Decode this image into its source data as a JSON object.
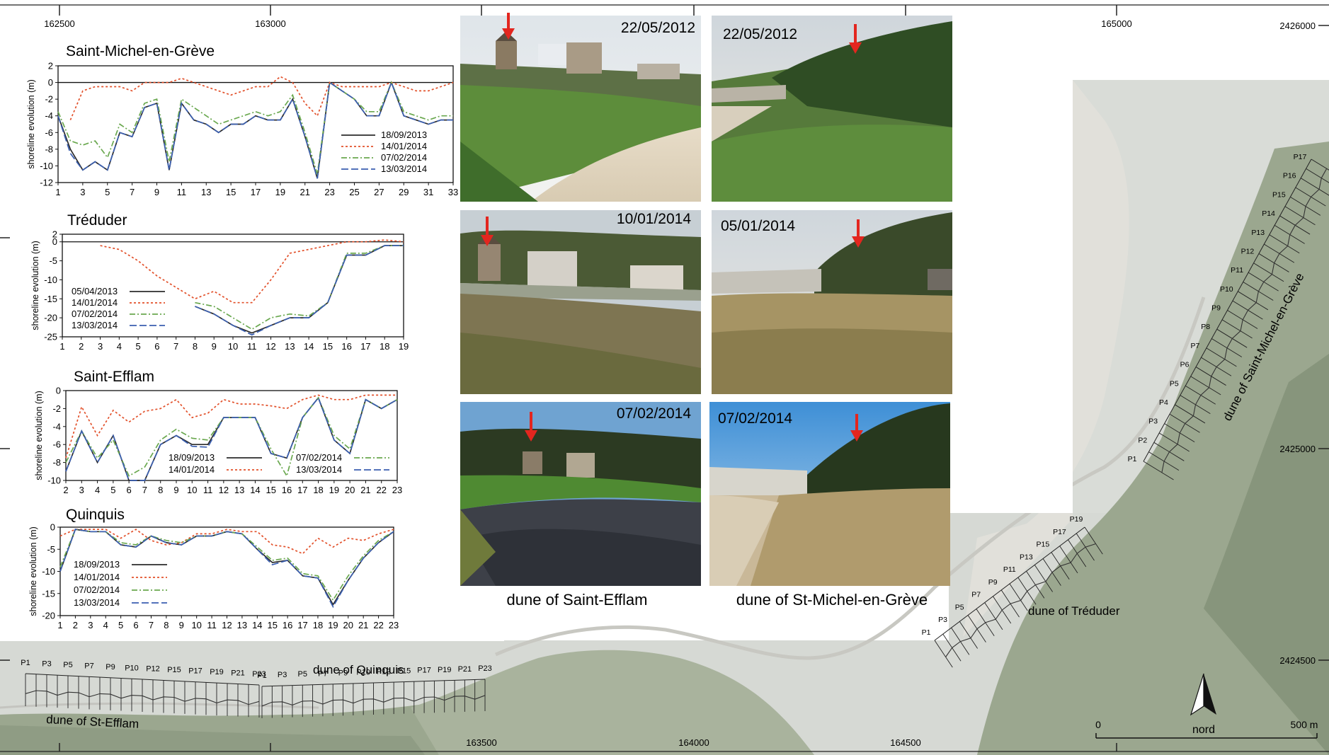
{
  "map": {
    "top_ticks": [
      "162500",
      "163000",
      "165000"
    ],
    "bottom_ticks": [
      "163500",
      "164000",
      "164500"
    ],
    "right_ticks": [
      "2426000",
      "2425000",
      "2424500"
    ],
    "dune_labels": {
      "st_efflam": "dune of St-Efflam",
      "quinquis": "dune of Quinquis",
      "treduder": "dune of Tréduder",
      "st_michel": "dune of Saint-Michel-en-Grève"
    },
    "north_label": "nord",
    "scale_start": "0",
    "scale_end": "500 m",
    "profile_labels": {
      "st_efflam": [
        "P1",
        "P3",
        "P5",
        "P7",
        "P9",
        "P10",
        "P12",
        "P15",
        "P17",
        "P19",
        "P21",
        "P23"
      ],
      "quinquis": [
        "P1",
        "P3",
        "P5",
        "P7",
        "P9",
        "P10",
        "P12",
        "P15",
        "P17",
        "P19",
        "P21",
        "P23"
      ],
      "treduder": [
        "P1",
        "P3",
        "P5",
        "P7",
        "P9",
        "P11",
        "P13",
        "P15",
        "P17",
        "P19"
      ],
      "st_michel": [
        "P1",
        "P2",
        "P3",
        "P4",
        "P5",
        "P6",
        "P7",
        "P8",
        "P9",
        "P10",
        "P11",
        "P12",
        "P13",
        "P14",
        "P15",
        "P16",
        "P17"
      ]
    },
    "colors": {
      "water": "#d7dad6",
      "land": "#9aa88f",
      "land_dark": "#7f8f76",
      "sand": "#e3e1da",
      "road": "#c9c9c4"
    }
  },
  "photos": {
    "dates": {
      "efflam_1": "22/05/2012",
      "efflam_2": "10/01/2014",
      "efflam_3": "07/02/2014",
      "michel_1": "22/05/2012",
      "michel_2": "05/01/2014",
      "michel_3": "07/02/2014"
    },
    "captions": {
      "efflam": "dune of Saint-Efflam",
      "michel": "dune of St-Michel-en-Grève"
    },
    "arrow_color": "#e3261f"
  },
  "chart_data": [
    {
      "type": "line",
      "title": "Saint-Michel-en-Grève",
      "ylabel": "shoreline evolution (m)",
      "xlabel": "",
      "x": [
        1,
        2,
        3,
        4,
        5,
        6,
        7,
        8,
        9,
        10,
        11,
        12,
        13,
        14,
        15,
        16,
        17,
        18,
        19,
        20,
        21,
        22,
        23,
        24,
        25,
        26,
        27,
        28,
        29,
        30,
        31,
        32,
        33
      ],
      "xticks": [
        1,
        3,
        5,
        7,
        9,
        11,
        13,
        15,
        17,
        19,
        21,
        23,
        25,
        27,
        29,
        31,
        33
      ],
      "ylim": [
        -12,
        2
      ],
      "yticks": [
        2,
        0,
        -2,
        -4,
        -6,
        -8,
        -10,
        -12
      ],
      "legend_position": "bottom-right",
      "series": [
        {
          "name": "18/09/2013",
          "color": "#2b2b2b",
          "dash": "none",
          "values": [
            -4,
            -8,
            -10.5,
            -9.5,
            -10.5,
            -6,
            -6.5,
            -3,
            -2.5,
            -10.5,
            -2.5,
            -4.5,
            -5,
            -6,
            -5,
            -5,
            -4,
            -4.5,
            -4.5,
            -2,
            -6.5,
            -11.5,
            0,
            -1,
            -2,
            -4,
            -4,
            0,
            -4,
            -4.5,
            -5,
            -4.5,
            -4.5
          ]
        },
        {
          "name": "14/01/2014",
          "color": "#e2502a",
          "dash": "3,3",
          "values": [
            null,
            -4.5,
            -1,
            -0.5,
            -0.5,
            -0.5,
            -1,
            0,
            0,
            0,
            0.5,
            0,
            -0.5,
            -1,
            -1.5,
            -1,
            -0.5,
            -0.5,
            0.7,
            0,
            -2.5,
            -4,
            0,
            -0.5,
            -0.5,
            -0.5,
            -0.5,
            0,
            -0.5,
            -1,
            -1,
            -0.5,
            0
          ]
        },
        {
          "name": "07/02/2014",
          "color": "#6aa84f",
          "dash": "8,3,2,3",
          "values": [
            -3.5,
            -7,
            -7.5,
            -7,
            -9,
            -5,
            -6,
            -2.5,
            -2,
            -9.5,
            -2,
            -3,
            -4,
            -5,
            -4.5,
            -4,
            -3.5,
            -4,
            -3.5,
            -1.5,
            -6,
            -11,
            0,
            -1,
            -2,
            -3.5,
            -3.5,
            0,
            -3.5,
            -4,
            -4.5,
            -4,
            -4
          ]
        },
        {
          "name": "13/03/2014",
          "color": "#3b5fb0",
          "dash": "10,4",
          "values": [
            -4,
            -8.5,
            -10.5,
            -9.5,
            -10.5,
            -6,
            -6.5,
            -3,
            -2.5,
            -10.5,
            -2.5,
            -4.5,
            -5,
            -6,
            -5,
            -5,
            -4,
            -4.5,
            -4.5,
            -2,
            -6.5,
            -11.5,
            0,
            -1,
            -2,
            -4,
            -4,
            0,
            -4,
            -4.5,
            -5,
            -4.5,
            -4.5
          ]
        }
      ]
    },
    {
      "type": "line",
      "title": "Tréduder",
      "ylabel": "shoreline evolution (m)",
      "xlabel": "",
      "x": [
        1,
        2,
        3,
        4,
        5,
        6,
        7,
        8,
        9,
        10,
        11,
        12,
        13,
        14,
        15,
        16,
        17,
        18,
        19
      ],
      "xticks": [
        1,
        2,
        3,
        4,
        5,
        6,
        7,
        8,
        9,
        10,
        11,
        12,
        13,
        14,
        15,
        16,
        17,
        18,
        19
      ],
      "ylim": [
        -25,
        2
      ],
      "yticks": [
        2,
        0,
        -5,
        -10,
        -15,
        -20,
        -25
      ],
      "legend_position": "bottom-left",
      "series": [
        {
          "name": "05/04/2013",
          "color": "#2b2b2b",
          "dash": "none",
          "values": [
            null,
            null,
            null,
            null,
            null,
            null,
            null,
            -17,
            -19,
            -22,
            -24,
            -22,
            -20,
            -20,
            -16,
            -3.5,
            -3.5,
            -1,
            -1
          ]
        },
        {
          "name": "14/01/2014",
          "color": "#e2502a",
          "dash": "3,3",
          "values": [
            null,
            null,
            -1,
            -2,
            -5,
            -9,
            -12,
            -15,
            -13,
            -16,
            -16,
            -10,
            -3,
            -2,
            -1,
            0,
            0,
            0.5,
            0
          ]
        },
        {
          "name": "07/02/2014",
          "color": "#6aa84f",
          "dash": "8,3,2,3",
          "values": [
            null,
            null,
            null,
            null,
            null,
            null,
            null,
            -16,
            -17,
            -20,
            -23,
            -20,
            -19,
            -19.5,
            -16,
            -3,
            -3,
            -1,
            -1
          ]
        },
        {
          "name": "13/03/2014",
          "color": "#3b5fb0",
          "dash": "10,4",
          "values": [
            null,
            null,
            null,
            null,
            null,
            null,
            null,
            -17,
            -19,
            -22,
            -24.5,
            -22,
            -20,
            -20,
            -16,
            -3.5,
            -3.5,
            -1,
            -1
          ]
        }
      ]
    },
    {
      "type": "line",
      "title": "Saint-Efflam",
      "ylabel": "shoreline evolution (m)",
      "xlabel": "",
      "x": [
        2,
        3,
        4,
        5,
        6,
        7,
        8,
        9,
        10,
        11,
        12,
        13,
        14,
        15,
        16,
        17,
        18,
        19,
        20,
        21,
        22,
        23
      ],
      "xticks": [
        2,
        3,
        4,
        5,
        6,
        7,
        8,
        9,
        10,
        11,
        12,
        13,
        14,
        15,
        16,
        17,
        18,
        19,
        20,
        21,
        22,
        23
      ],
      "ylim": [
        -10,
        0
      ],
      "yticks": [
        0,
        -2,
        -4,
        -6,
        -8,
        -10
      ],
      "legend_position": "bottom",
      "series": [
        {
          "name": "18/09/2013",
          "color": "#2b2b2b",
          "dash": "none",
          "values": [
            -9,
            -4.5,
            -8,
            -5,
            -10,
            -10,
            -6,
            -5,
            -6,
            -6,
            -3,
            -3,
            -3,
            -7,
            -7.5,
            -3,
            -0.8,
            -5.5,
            -7,
            -1,
            -2,
            -1
          ]
        },
        {
          "name": "14/01/2014",
          "color": "#e2502a",
          "dash": "3,3",
          "values": [
            -7.5,
            -1.8,
            -5,
            -2.2,
            -3.5,
            -2.3,
            -2,
            -1,
            -3,
            -2.5,
            -1,
            -1.5,
            -1.5,
            -1.7,
            -2,
            -1,
            -0.5,
            -1,
            -1,
            -0.5,
            -0.5,
            -0.5
          ]
        },
        {
          "name": "07/02/2014",
          "color": "#6aa84f",
          "dash": "8,3,2,3",
          "values": [
            -8,
            -4.5,
            -7.5,
            -5.5,
            -9.5,
            -8.5,
            -5.5,
            -4.3,
            -5.3,
            -5.5,
            -3,
            -3,
            -3,
            -6.5,
            -9.5,
            -3,
            -0.8,
            -5,
            -6.5,
            -1,
            -2,
            -1
          ]
        },
        {
          "name": "13/03/2014",
          "color": "#3b5fb0",
          "dash": "10,4",
          "values": [
            -9,
            -4.5,
            -8,
            -5,
            -10,
            -10,
            -6,
            -5,
            -6.2,
            -6.3,
            -3,
            -3,
            -3,
            -7,
            -7.5,
            -3,
            -0.8,
            -5.5,
            -7,
            -1,
            -2,
            -1
          ]
        }
      ]
    },
    {
      "type": "line",
      "title": "Quinquis",
      "ylabel": "shoreline evolution (m)",
      "xlabel": "",
      "x": [
        1,
        2,
        3,
        4,
        5,
        6,
        7,
        8,
        9,
        10,
        11,
        12,
        13,
        14,
        15,
        16,
        17,
        18,
        19,
        20,
        21,
        22,
        23
      ],
      "xticks": [
        1,
        2,
        3,
        4,
        5,
        6,
        7,
        8,
        9,
        10,
        11,
        12,
        13,
        14,
        15,
        16,
        17,
        18,
        19,
        20,
        21,
        22,
        23
      ],
      "ylim": [
        -20,
        0
      ],
      "yticks": [
        0,
        -5,
        -10,
        -15,
        -20
      ],
      "legend_position": "bottom-left",
      "series": [
        {
          "name": "18/09/2013",
          "color": "#2b2b2b",
          "dash": "none",
          "values": [
            -10,
            -0.5,
            -1,
            -1,
            -4,
            -4.5,
            -2,
            -3.5,
            -4,
            -2,
            -2,
            -1,
            -1.5,
            -5,
            -8,
            -7.5,
            -11,
            -11.5,
            -17.5,
            -12,
            -7,
            -3.5,
            -1
          ]
        },
        {
          "name": "14/01/2014",
          "color": "#e2502a",
          "dash": "3,3",
          "values": [
            -2,
            -0.5,
            -0.5,
            -0.5,
            -2.5,
            -0.5,
            -3,
            -4,
            -3.5,
            -1.5,
            -1.5,
            -0.5,
            -1,
            -1,
            -4,
            -4.5,
            -6,
            -2.5,
            -4.5,
            -2.5,
            -3,
            -1.5,
            -0.5
          ]
        },
        {
          "name": "07/02/2014",
          "color": "#6aa84f",
          "dash": "8,3,2,3",
          "values": [
            -9,
            -0.5,
            -1,
            -1,
            -3.5,
            -4,
            -2,
            -3,
            -3.5,
            -2,
            -2,
            -1,
            -1.5,
            -4.5,
            -7.5,
            -7,
            -10.5,
            -11,
            -16.5,
            -11,
            -6.5,
            -3,
            -1
          ]
        },
        {
          "name": "13/03/2014",
          "color": "#3b5fb0",
          "dash": "10,4",
          "values": [
            -10,
            -0.5,
            -1,
            -1,
            -4,
            -4.5,
            -2,
            -3.5,
            -4,
            -2,
            -2,
            -1,
            -1.5,
            -5,
            -8.5,
            -7.5,
            -11,
            -11.5,
            -18,
            -12,
            -7,
            -3.5,
            -1
          ]
        }
      ]
    }
  ]
}
